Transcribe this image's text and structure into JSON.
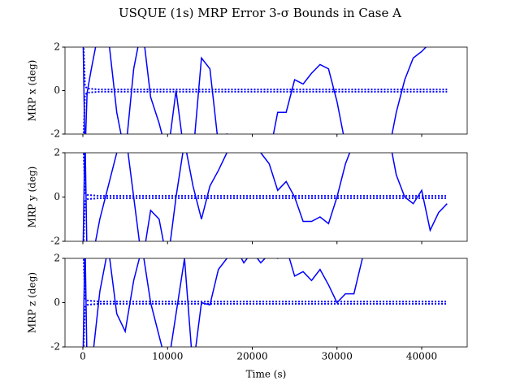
{
  "title": "USQUE (1s) MRP Error 3-σ Bounds in Case A",
  "chart_data": [
    {
      "type": "line",
      "ylabel": "MRP x (deg)",
      "xlim": [
        -2110,
        45370
      ],
      "ylim": [
        -2,
        2
      ],
      "yticks": [
        -2,
        0,
        2
      ],
      "xticks": [
        0,
        10000,
        20000,
        30000,
        40000
      ],
      "show_xtick_labels": false,
      "x": [
        0,
        250,
        500,
        1000,
        2000,
        3000,
        4000,
        5000,
        6000,
        7000,
        8000,
        9000,
        10000,
        11000,
        12000,
        13000,
        14000,
        15000,
        16000,
        17000,
        18000,
        19000,
        20000,
        21000,
        22000,
        23000,
        24000,
        25000,
        26000,
        27000,
        28000,
        29000,
        30000,
        31000,
        32000,
        33000,
        34000,
        35000,
        36000,
        37000,
        38000,
        39000,
        40000,
        41000,
        42000,
        43000
      ],
      "series": [
        {
          "color": "#0000ff",
          "linestyle": "solid",
          "values": [
            3,
            -3,
            -0.1,
            1,
            3,
            2.5,
            -1,
            -3,
            1,
            3,
            -0.3,
            -1.5,
            -3,
            0,
            -3,
            -3,
            1.5,
            1,
            -2.5,
            -2,
            -2.5,
            -3,
            -3,
            -3,
            -3,
            -1,
            -1,
            0.5,
            0.3,
            0.8,
            1.2,
            1,
            -0.5,
            -2.5,
            -3,
            -3,
            -3,
            -3,
            -3,
            -1,
            0.5,
            1.5,
            1.8,
            2.2,
            3,
            3
          ]
        },
        {
          "color": "#0000ff",
          "linestyle": "dotted",
          "values": [
            3,
            0.2,
            0.1,
            0.08,
            0.05,
            0.05,
            0.05,
            0.05,
            0.05,
            0.05,
            0.05,
            0.05,
            0.05,
            0.05,
            0.05,
            0.05,
            0.05,
            0.05,
            0.05,
            0.05,
            0.05,
            0.05,
            0.05,
            0.05,
            0.05,
            0.05,
            0.05,
            0.05,
            0.05,
            0.05,
            0.05,
            0.05,
            0.05,
            0.05,
            0.05,
            0.05,
            0.05,
            0.05,
            0.05,
            0.05,
            0.05,
            0.05,
            0.05,
            0.05,
            0.05,
            0.05
          ]
        },
        {
          "color": "#0000ff",
          "linestyle": "dotted",
          "values": [
            -3,
            -0.2,
            -0.1,
            -0.08,
            -0.05,
            -0.05,
            -0.05,
            -0.05,
            -0.05,
            -0.05,
            -0.05,
            -0.05,
            -0.05,
            -0.05,
            -0.05,
            -0.05,
            -0.05,
            -0.05,
            -0.05,
            -0.05,
            -0.05,
            -0.05,
            -0.05,
            -0.05,
            -0.05,
            -0.05,
            -0.05,
            -0.05,
            -0.05,
            -0.05,
            -0.05,
            -0.05,
            -0.05,
            -0.05,
            -0.05,
            -0.05,
            -0.05,
            -0.05,
            -0.05,
            -0.05,
            -0.05,
            -0.05,
            -0.05,
            -0.05,
            -0.05,
            -0.05
          ]
        }
      ]
    },
    {
      "type": "line",
      "ylabel": "MRP y (deg)",
      "xlim": [
        -2110,
        45370
      ],
      "ylim": [
        -2,
        2
      ],
      "yticks": [
        -2,
        0,
        2
      ],
      "xticks": [
        0,
        10000,
        20000,
        30000,
        40000
      ],
      "show_xtick_labels": false,
      "x": [
        0,
        250,
        500,
        1000,
        2000,
        3000,
        4000,
        5000,
        6000,
        7000,
        8000,
        9000,
        10000,
        11000,
        12000,
        13000,
        14000,
        15000,
        16000,
        17000,
        18000,
        19000,
        20000,
        21000,
        22000,
        23000,
        24000,
        25000,
        26000,
        27000,
        28000,
        29000,
        30000,
        31000,
        32000,
        33000,
        34000,
        35000,
        36000,
        37000,
        38000,
        39000,
        40000,
        41000,
        42000,
        43000
      ],
      "series": [
        {
          "color": "#0000ff",
          "linestyle": "solid",
          "values": [
            -3,
            3,
            -3,
            -3,
            -1,
            0.5,
            2,
            3,
            0,
            -3,
            -0.6,
            -1,
            -3,
            0,
            2.5,
            0.5,
            -1,
            0.5,
            1.2,
            2,
            2.2,
            2.5,
            2.2,
            2,
            1.5,
            0.3,
            0.7,
            0,
            -1.1,
            -1.1,
            -0.9,
            -1.2,
            0,
            1.5,
            2.5,
            3,
            3,
            3,
            3,
            1,
            0,
            -0.3,
            0.3,
            -1.5,
            -0.7,
            -0.3
          ]
        },
        {
          "color": "#0000ff",
          "linestyle": "dotted",
          "values": [
            3,
            0.2,
            0.1,
            0.08,
            0.05,
            0.05,
            0.05,
            0.05,
            0.05,
            0.05,
            0.05,
            0.05,
            0.05,
            0.05,
            0.05,
            0.05,
            0.05,
            0.05,
            0.05,
            0.05,
            0.05,
            0.05,
            0.05,
            0.05,
            0.05,
            0.05,
            0.05,
            0.05,
            0.05,
            0.05,
            0.05,
            0.05,
            0.05,
            0.05,
            0.05,
            0.05,
            0.05,
            0.05,
            0.05,
            0.05,
            0.05,
            0.05,
            0.05,
            0.05,
            0.05,
            0.05
          ]
        },
        {
          "color": "#0000ff",
          "linestyle": "dotted",
          "values": [
            -3,
            -0.2,
            -0.1,
            -0.08,
            -0.05,
            -0.05,
            -0.05,
            -0.05,
            -0.05,
            -0.05,
            -0.05,
            -0.05,
            -0.05,
            -0.05,
            -0.05,
            -0.05,
            -0.05,
            -0.05,
            -0.05,
            -0.05,
            -0.05,
            -0.05,
            -0.05,
            -0.05,
            -0.05,
            -0.05,
            -0.05,
            -0.05,
            -0.05,
            -0.05,
            -0.05,
            -0.05,
            -0.05,
            -0.05,
            -0.05,
            -0.05,
            -0.05,
            -0.05,
            -0.05,
            -0.05,
            -0.05,
            -0.05,
            -0.05,
            -0.05,
            -0.05,
            -0.05
          ]
        }
      ]
    },
    {
      "type": "line",
      "ylabel": "MRP z (deg)",
      "xlabel": "Time (s)",
      "xlim": [
        -2110,
        45370
      ],
      "ylim": [
        -2,
        2
      ],
      "yticks": [
        -2,
        0,
        2
      ],
      "xticks": [
        0,
        10000,
        20000,
        30000,
        40000
      ],
      "show_xtick_labels": true,
      "x": [
        0,
        250,
        500,
        1000,
        2000,
        3000,
        4000,
        5000,
        6000,
        7000,
        8000,
        9000,
        10000,
        11000,
        12000,
        13000,
        14000,
        15000,
        16000,
        17000,
        18000,
        19000,
        20000,
        21000,
        22000,
        23000,
        24000,
        25000,
        26000,
        27000,
        28000,
        29000,
        30000,
        31000,
        32000,
        33000,
        34000,
        35000,
        36000,
        37000,
        38000,
        39000,
        40000,
        41000,
        42000,
        43000
      ],
      "series": [
        {
          "color": "#0000ff",
          "linestyle": "solid",
          "values": [
            -3,
            3,
            -3,
            -3,
            0.5,
            2.5,
            -0.5,
            -1.3,
            1,
            2.5,
            0,
            -1.5,
            -3,
            -0.5,
            2,
            -3,
            0,
            -0.1,
            1.5,
            2,
            2.5,
            1.8,
            2.3,
            1.8,
            2.2,
            2,
            2.5,
            1.2,
            1.4,
            1,
            1.5,
            0.8,
            0,
            0.4,
            0.4,
            2,
            3,
            3,
            3,
            3,
            3,
            3,
            3,
            3,
            3,
            3
          ]
        },
        {
          "color": "#0000ff",
          "linestyle": "dotted",
          "values": [
            3,
            0.2,
            0.1,
            0.08,
            0.05,
            0.05,
            0.05,
            0.05,
            0.05,
            0.05,
            0.05,
            0.05,
            0.05,
            0.05,
            0.05,
            0.05,
            0.05,
            0.05,
            0.05,
            0.05,
            0.05,
            0.05,
            0.05,
            0.05,
            0.05,
            0.05,
            0.05,
            0.05,
            0.05,
            0.05,
            0.05,
            0.05,
            0.05,
            0.05,
            0.05,
            0.05,
            0.05,
            0.05,
            0.05,
            0.05,
            0.05,
            0.05,
            0.05,
            0.05,
            0.05,
            0.05
          ]
        },
        {
          "color": "#0000ff",
          "linestyle": "dotted",
          "values": [
            -3,
            -0.2,
            -0.1,
            -0.08,
            -0.05,
            -0.05,
            -0.05,
            -0.05,
            -0.05,
            -0.05,
            -0.05,
            -0.05,
            -0.05,
            -0.05,
            -0.05,
            -0.05,
            -0.05,
            -0.05,
            -0.05,
            -0.05,
            -0.05,
            -0.05,
            -0.05,
            -0.05,
            -0.05,
            -0.05,
            -0.05,
            -0.05,
            -0.05,
            -0.05,
            -0.05,
            -0.05,
            -0.05,
            -0.05,
            -0.05,
            -0.05,
            -0.05,
            -0.05,
            -0.05,
            -0.05,
            -0.05,
            -0.05,
            -0.05,
            -0.05,
            -0.05,
            -0.05
          ]
        }
      ]
    }
  ]
}
